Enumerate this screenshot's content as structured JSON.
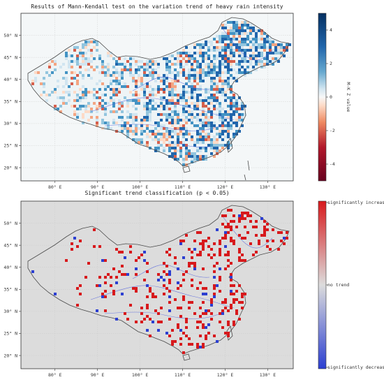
{
  "panels": [
    {
      "title": "Results of Mann-Kendall test on the variation trend of heavy rain intensity",
      "colorbar_label": "M-K Z value",
      "colorbar_ticks": [
        "4",
        "2",
        "0",
        "-2",
        "-4"
      ],
      "colorbar_values": [
        4,
        2,
        0,
        -2,
        -4
      ],
      "colorbar_range": [
        -5,
        5
      ],
      "colormap": "RdBu"
    },
    {
      "title": "Significant trend classification (p < 0.05)",
      "colorbar_ticks": [
        "significantly increased",
        "no trend",
        "significantly decreased"
      ],
      "colors": {
        "increased": "#d7191c",
        "no_trend": "#dcdcdc",
        "decreased": "#2c3fd1"
      }
    }
  ],
  "axes": {
    "lon_ticks": [
      "80° E",
      "90° E",
      "100° E",
      "110° E",
      "120° E",
      "130° E"
    ],
    "lon_values": [
      80,
      90,
      100,
      110,
      120,
      130
    ],
    "lat_ticks": [
      "50° N",
      "45° N",
      "40° N",
      "35° N",
      "30° N",
      "25° N",
      "20° N"
    ],
    "lat_values": [
      50,
      45,
      40,
      35,
      30,
      25,
      20
    ],
    "lon_range": [
      72,
      136
    ],
    "lat_range": [
      17,
      55
    ]
  }
}
